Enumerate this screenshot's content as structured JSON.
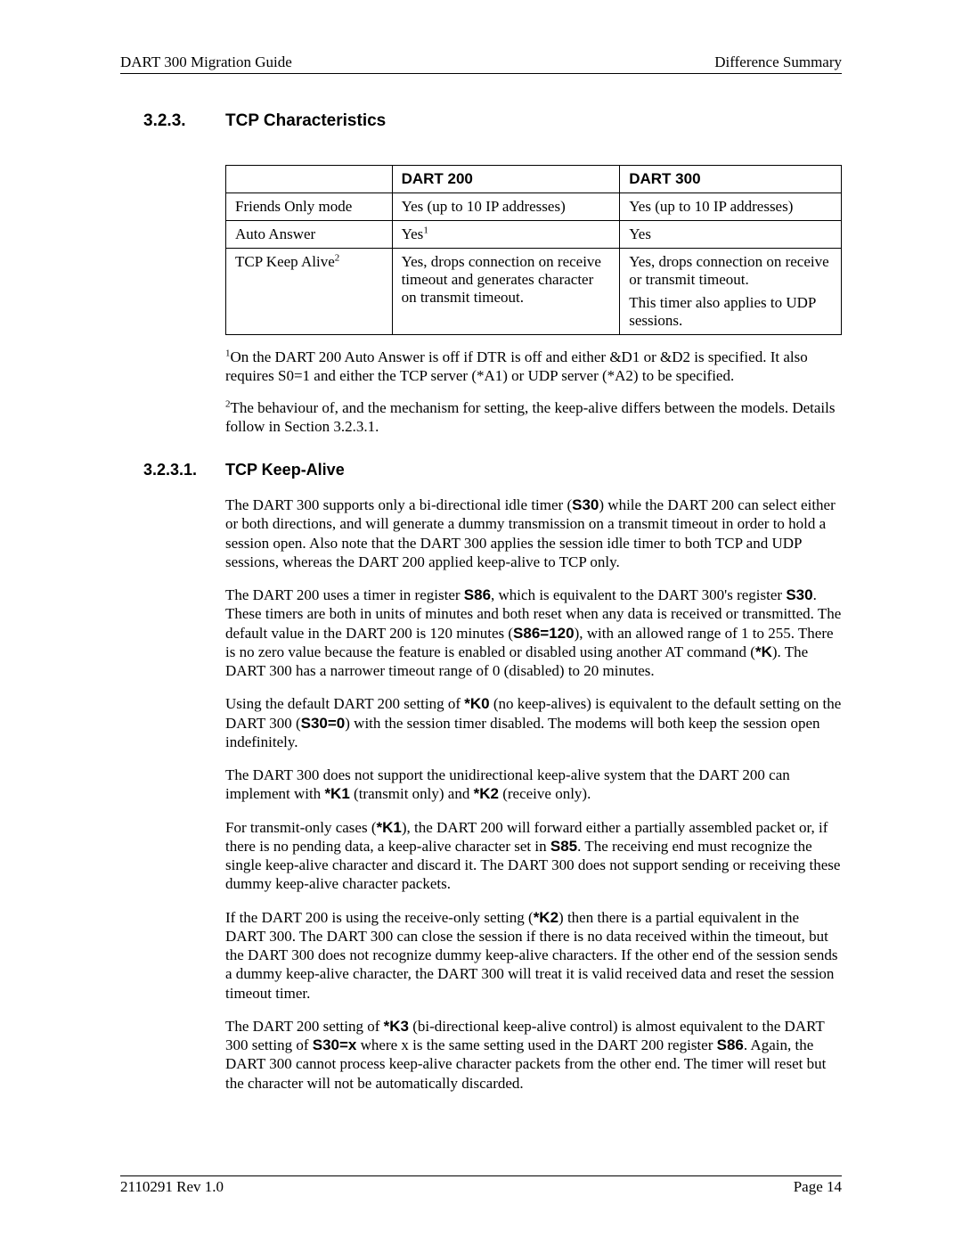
{
  "header": {
    "left": "DART 300 Migration Guide",
    "right": "Difference Summary"
  },
  "section": {
    "num": "3.2.3.",
    "title": "TCP Characteristics"
  },
  "table": {
    "headers": [
      "",
      "DART 200",
      "DART 300"
    ],
    "rows": [
      {
        "label": "Friends Only mode",
        "d200": "Yes (up to 10 IP addresses)",
        "d300": "Yes (up to 10 IP addresses)"
      },
      {
        "label": "Auto Answer",
        "d200": "Yes",
        "d200_sup": "1",
        "d300": "Yes"
      },
      {
        "label": "TCP Keep Alive",
        "label_sup": "2",
        "d200": "Yes, drops connection on receive timeout and generates character on transmit timeout.",
        "d300_a": "Yes, drops connection on receive or transmit timeout.",
        "d300_b": "This timer also applies to UDP sessions."
      }
    ]
  },
  "footnote1_a": "On the DART 200 Auto Answer is off if DTR is off and either &D1 or &D2 is specified.  It also requires S0=1 and either the TCP server (*A1) or UDP server (*A2) to be specified.",
  "footnote2_a": "The behaviour of, and the mechanism for setting, the keep-alive differs between the models.  Details follow in Section 3.2.3.1.",
  "subsection": {
    "num": "3.2.3.1.",
    "title": "TCP Keep-Alive"
  },
  "p1_a": "The DART 300 supports only a bi-directional idle timer (",
  "p1_b": "S30",
  "p1_c": ") while the DART 200 can select either or both directions, and will generate a dummy transmission on a transmit timeout in order to hold a session open.  Also note that the DART 300 applies the session idle timer to both TCP and UDP sessions, whereas the DART 200 applied keep-alive to TCP only.",
  "p2_a": "The DART 200 uses a timer in register ",
  "p2_b": "S86",
  "p2_c": ", which is equivalent to the DART 300's register ",
  "p2_d": "S30",
  "p2_e": ". These timers are both in units of minutes and both reset when any data is received or transmitted. The default value in the DART 200 is 120 minutes (",
  "p2_f": "S86=120",
  "p2_g": "), with an allowed range of 1 to 255. There is no zero value because the feature is enabled or disabled using another AT command (",
  "p2_h": "*K",
  "p2_i": "). The DART 300 has a narrower timeout range of 0 (disabled) to 20 minutes.",
  "p3_a": "Using the default DART 200 setting of ",
  "p3_b": "*K0",
  "p3_c": " (no keep-alives) is equivalent to the default setting on the DART 300 (",
  "p3_d": "S30=0",
  "p3_e": ") with the session timer disabled.  The modems will both keep the session open indefinitely.",
  "p4_a": "The DART 300 does not support the unidirectional keep-alive system that the DART 200 can implement with ",
  "p4_b": "*K1",
  "p4_c": " (transmit only) and ",
  "p4_d": "*K2",
  "p4_e": " (receive only).",
  "p5_a": "For transmit-only cases (",
  "p5_b": "*K1",
  "p5_c": "), the DART 200 will forward either a partially assembled packet or, if there is no pending data, a keep-alive character set in ",
  "p5_d": "S85",
  "p5_e": ".  The receiving end must recognize the single keep-alive character and discard it.  The DART 300 does not support sending or receiving these dummy keep-alive character packets.",
  "p6_a": "If the DART 200 is using the receive-only setting (",
  "p6_b": "*K2",
  "p6_c": ") then there is a partial equivalent in the DART 300.  The DART 300 can close the session if there is no data received within the timeout, but the DART 300 does not recognize dummy keep-alive characters.  If the other end of the session sends a dummy keep-alive character, the DART 300 will treat it is valid received data and reset the session timeout timer.",
  "p7_a": "The DART 200 setting of ",
  "p7_b": "*K3",
  "p7_c": " (bi-directional keep-alive control) is almost equivalent to the DART 300 setting of ",
  "p7_d": "S30=x",
  "p7_e": " where x is the same setting used in the DART 200 register ",
  "p7_f": "S86",
  "p7_g": ". Again, the DART 300 cannot process keep-alive character packets from the other end.  The timer will reset but the character will not be automatically discarded.",
  "footer": {
    "left": "2110291 Rev 1.0",
    "right": "Page 14"
  }
}
